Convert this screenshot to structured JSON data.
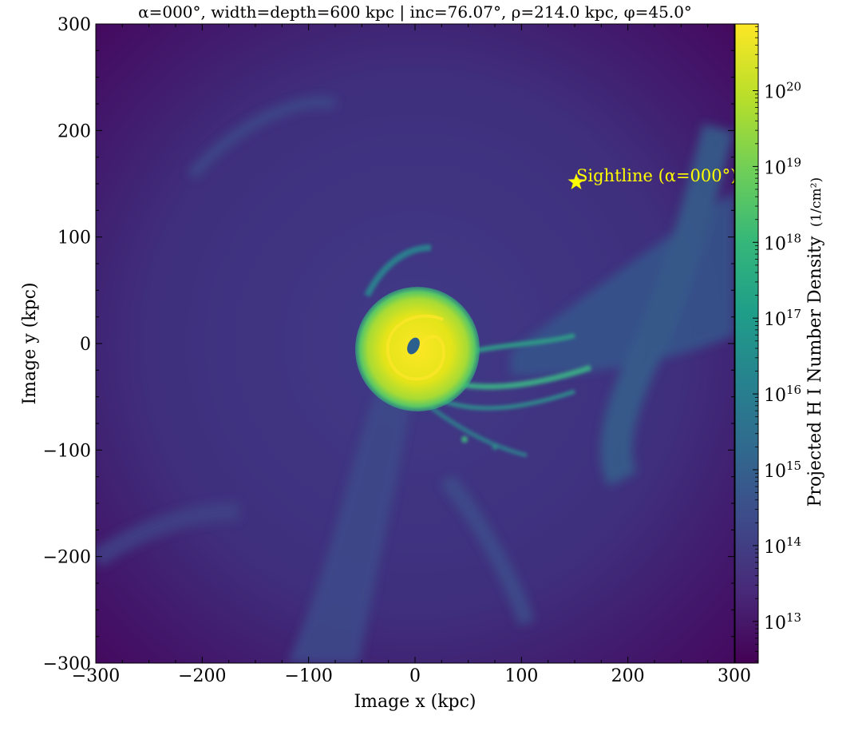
{
  "chart_data": {
    "type": "heatmap",
    "title": "α=000°, width=depth=600 kpc | inc=76.07°, ρ=214.0 kpc, φ=45.0°",
    "xlabel": "Image x  (kpc)",
    "ylabel": "Image y  (kpc)",
    "xlim": [
      -300,
      300
    ],
    "ylim": [
      -300,
      300
    ],
    "xticks": [
      -300,
      -200,
      -100,
      0,
      100,
      200,
      300
    ],
    "yticks": [
      -300,
      -200,
      -100,
      0,
      100,
      200,
      300
    ],
    "xtick_labels": [
      "−300",
      "−200",
      "−100",
      "0",
      "100",
      "200",
      "300"
    ],
    "ytick_labels": [
      "−300",
      "−200",
      "−100",
      "0",
      "100",
      "200",
      "300"
    ],
    "colorbar": {
      "label": "Projected H I Number Density",
      "unit_label": "(1/cm²)",
      "scale": "log",
      "range_log10": [
        12.45,
        20.88
      ],
      "ticks_log10": [
        13,
        14,
        15,
        16,
        17,
        18,
        19,
        20
      ],
      "tick_label_base": "10",
      "tick_label_exponents": [
        "13",
        "14",
        "15",
        "16",
        "17",
        "18",
        "19",
        "20"
      ],
      "colormap": "viridis",
      "colors": [
        "#440154",
        "#482878",
        "#3e4989",
        "#31688e",
        "#26828e",
        "#1f9e89",
        "#35b779",
        "#6ece58",
        "#b5de2b",
        "#fde725"
      ]
    },
    "annotations": [
      {
        "type": "star-marker",
        "label": "Sightline (α=000°)",
        "x": 151.3,
        "y": 151.3,
        "color": "#ffff00"
      }
    ],
    "features": {
      "background_log10": 13.4,
      "disk_center": [
        0,
        0
      ],
      "disk_radius_kpc": 60,
      "disk_log10": 20.5,
      "central_hole_log10": 16.5,
      "tidal_streams": "extend east/south-east from disk toward x≈150 kpc"
    }
  }
}
